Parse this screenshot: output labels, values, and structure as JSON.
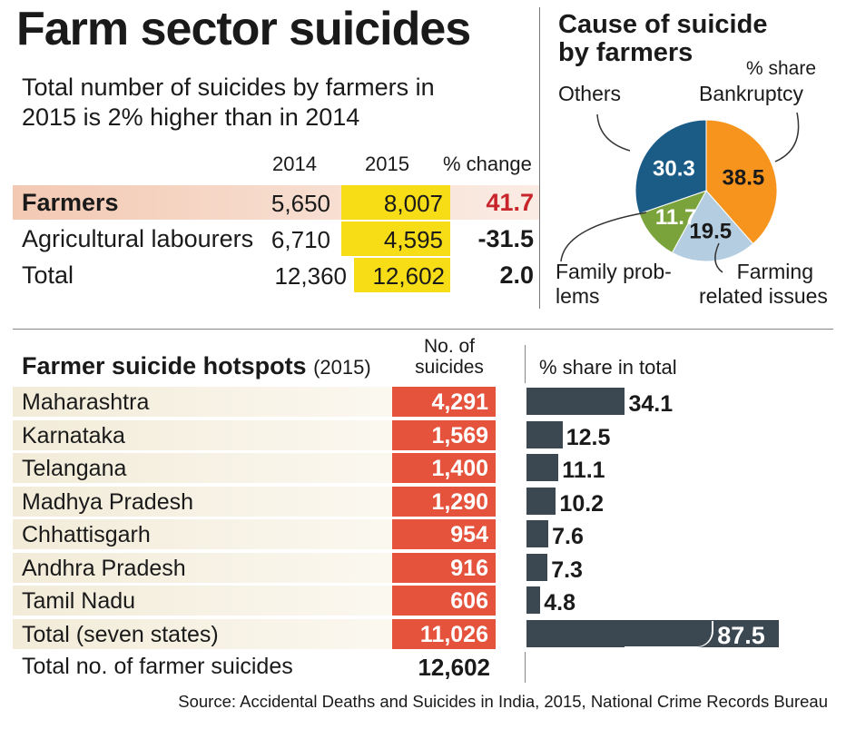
{
  "title": "Farm sector suicides",
  "subtitle": "Total number of suicides by farmers in 2015 is 2% higher than in 2014",
  "table": {
    "headers": [
      "2014",
      "2015",
      "% change"
    ],
    "rows": [
      {
        "label": "Farmers",
        "y2014": "5,650",
        "y2015": "8,007",
        "change": "41.7"
      },
      {
        "label": "Agricultural labourers",
        "y2014": "6,710",
        "y2015": "4,595",
        "change": "-31.5"
      },
      {
        "label": "Total",
        "y2014": "12,360",
        "y2015": "12,602",
        "change": "2.0"
      }
    ]
  },
  "pie": {
    "title_line1": "Cause of suicide",
    "title_line2": "by farmers",
    "unit_label": "% share",
    "labels": {
      "bankruptcy": "Bankruptcy",
      "others": "Others",
      "family_1": "Family prob-",
      "family_2": "lems",
      "farming_1": "Farming",
      "farming_2": "related issues"
    }
  },
  "hotspots": {
    "title": "Farmer suicide hotspots",
    "year": "(2015)",
    "col_no_1": "No. of",
    "col_no_2": "suicides",
    "col_share": "% share in total",
    "total_label": "Total no. of farmer suicides",
    "total_value": "12,602"
  },
  "source": "Source: Accidental Deaths and Suicides in India, 2015, National Crime Records Bureau",
  "colors": {
    "orange": "#f7941d",
    "blue": "#1b5c87",
    "green": "#7aa33b",
    "lightblue": "#b4cde0",
    "red": "#e5533d",
    "bar": "#3b4751",
    "yellow": "#f7dd16",
    "farmers_row": "#f4d2c2",
    "row_bg": "#f2ebd8",
    "change_red": "#c8242b"
  },
  "chart_data": [
    {
      "type": "pie",
      "title": "Cause of suicide by farmers",
      "unit": "% share",
      "categories": [
        "Bankruptcy",
        "Farming related issues",
        "Family problems",
        "Others"
      ],
      "values": [
        38.5,
        19.5,
        11.7,
        30.3
      ],
      "labels": [
        "38.5",
        "19.5",
        "11.7",
        "30.3"
      ]
    },
    {
      "type": "bar",
      "title": "Farmer suicide hotspots (2015)",
      "categories": [
        "Maharashtra",
        "Karnataka",
        "Telangana",
        "Madhya Pradesh",
        "Chhattisgarh",
        "Andhra Pradesh",
        "Tamil Nadu",
        "Total (seven states)"
      ],
      "suicides": [
        "4,291",
        "1,569",
        "1,400",
        "1,290",
        "954",
        "916",
        "606",
        "11,026"
      ],
      "values": [
        34.1,
        12.5,
        11.1,
        10.2,
        7.6,
        7.3,
        4.8,
        87.5
      ],
      "value_labels": [
        "34.1",
        "12.5",
        "11.1",
        "10.2",
        "7.6",
        "7.3",
        "4.8",
        "87.5"
      ],
      "xlabel": "% share in total",
      "xlim": [
        0,
        100
      ]
    }
  ]
}
